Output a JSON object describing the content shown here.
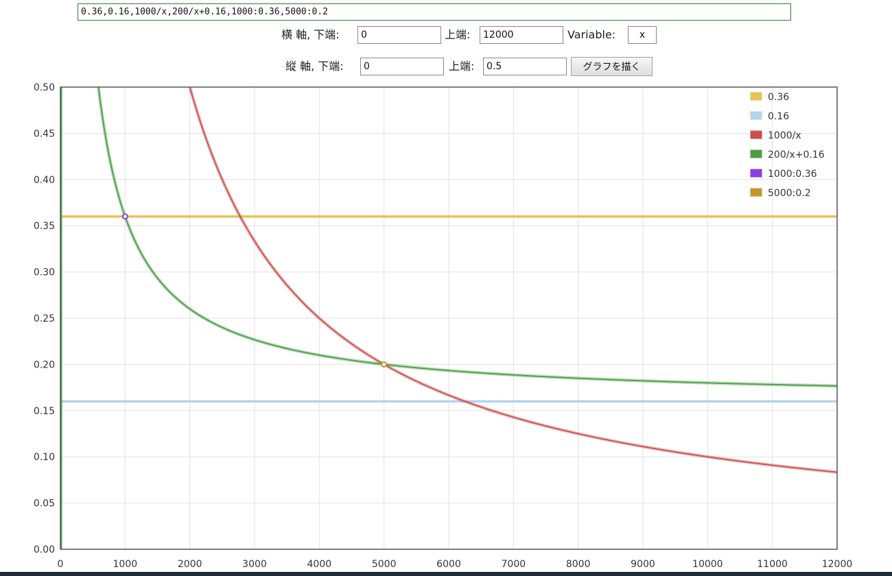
{
  "expression": "0.36,0.16,1000/x,200/x+0.16,1000:0.36,5000:0.2",
  "x_axis_row": {
    "label": "横 軸, 下端:",
    "lower_value": "0",
    "upper_label": "上端:",
    "upper_value": "12000",
    "variable_label": "Variable:",
    "variable_value": "x"
  },
  "y_axis_row": {
    "label": "縦 軸, 下端:",
    "lower_value": "0",
    "upper_label": "上端:",
    "upper_value": "0.5",
    "draw_button": "グラフを描く"
  },
  "chart_data": {
    "type": "line",
    "xlim": [
      0,
      12000
    ],
    "ylim": [
      0,
      0.5
    ],
    "grid": true,
    "legend_position": "top-right",
    "x_ticks": [
      "0",
      "1000",
      "2000",
      "3000",
      "4000",
      "5000",
      "6000",
      "7000",
      "8000",
      "9000",
      "10000",
      "11000",
      "12000"
    ],
    "y_ticks": [
      "0.00",
      "0.05",
      "0.10",
      "0.15",
      "0.20",
      "0.25",
      "0.30",
      "0.35",
      "0.40",
      "0.45",
      "0.50"
    ],
    "series": [
      {
        "name": "0.36",
        "kind": "constant",
        "value": 0.36,
        "color": "#e8c15a"
      },
      {
        "name": "0.16",
        "kind": "constant",
        "value": 0.16,
        "color": "#b3d4ec"
      },
      {
        "name": "1000/x",
        "kind": "function",
        "formula": "1000/x",
        "color": "#c9504c"
      },
      {
        "name": "200/x+0.16",
        "kind": "function",
        "formula": "200/x+0.16",
        "color": "#4a9e48"
      },
      {
        "name": "1000:0.36",
        "kind": "point",
        "x": 1000,
        "y": 0.36,
        "color": "#8a3ee0"
      },
      {
        "name": "5000:0.2",
        "kind": "point",
        "x": 5000,
        "y": 0.2,
        "color": "#c2962e"
      }
    ]
  }
}
